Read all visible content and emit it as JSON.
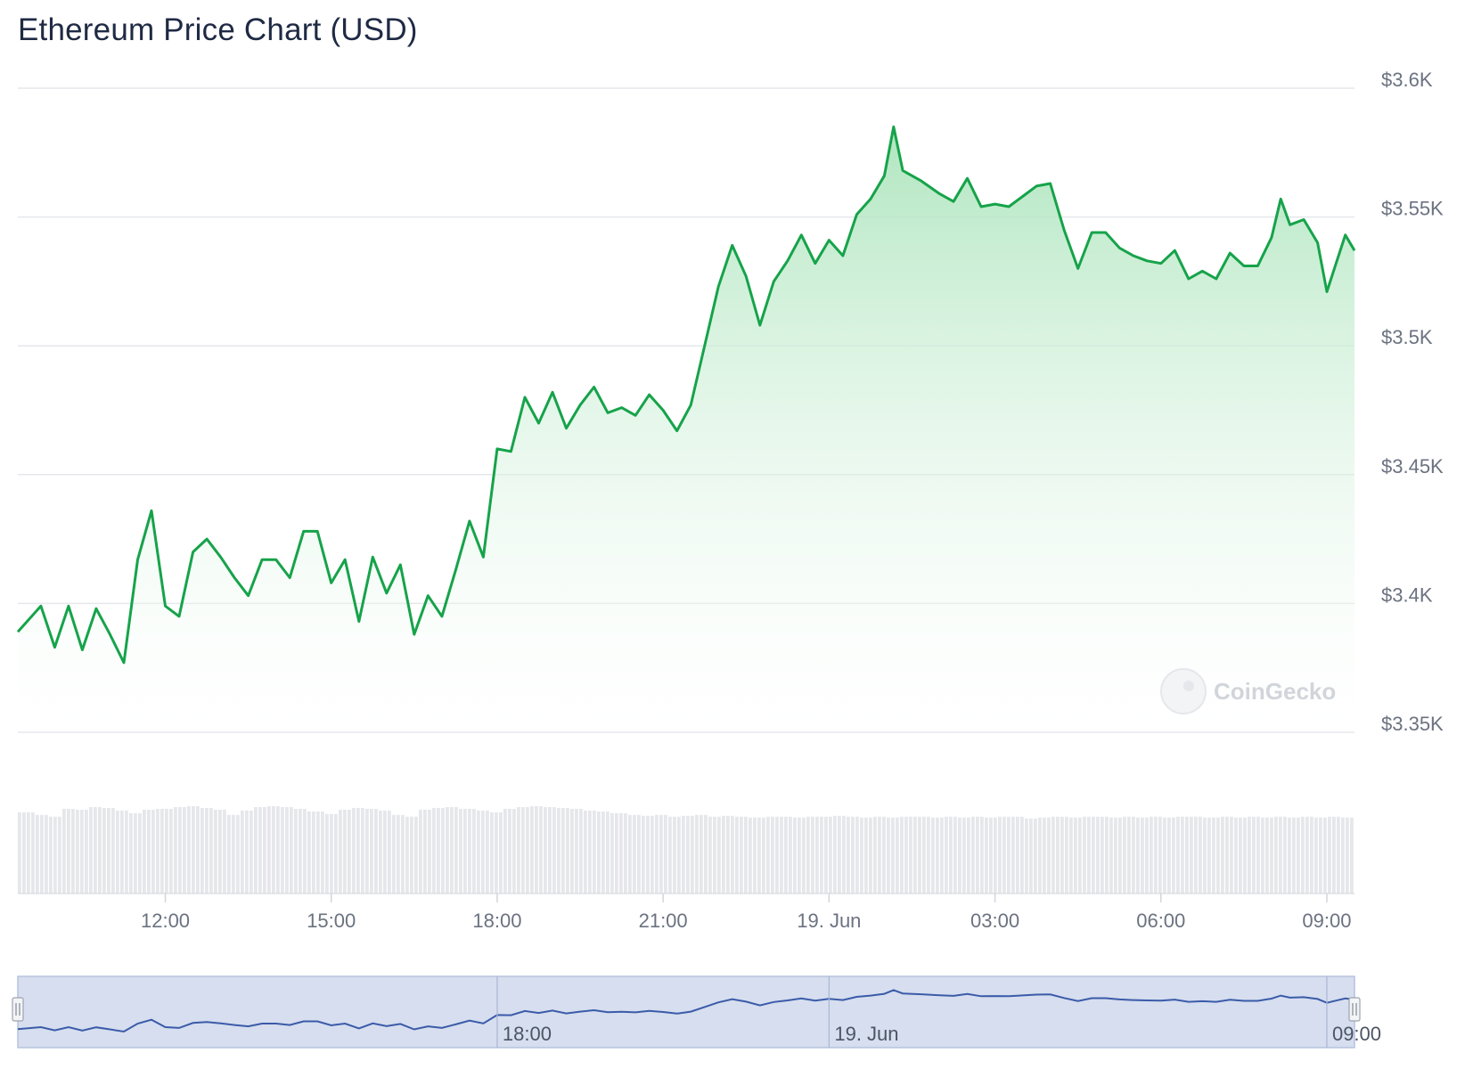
{
  "chart_data": {
    "type": "area",
    "title": "Ethereum Price Chart (USD)",
    "ylim": [
      3350,
      3600
    ],
    "y_ticks": [
      "$3.35K",
      "$3.4K",
      "$3.45K",
      "$3.5K",
      "$3.55K",
      "$3.6K"
    ],
    "y_tick_values": [
      3350,
      3400,
      3450,
      3500,
      3550,
      3600
    ],
    "x_range": [
      "2024-06-18T09:20",
      "2024-06-19T09:30"
    ],
    "x_ticks": [
      {
        "label": "12:00",
        "time": "2024-06-18T12:00"
      },
      {
        "label": "15:00",
        "time": "2024-06-18T15:00"
      },
      {
        "label": "18:00",
        "time": "2024-06-18T18:00"
      },
      {
        "label": "21:00",
        "time": "2024-06-18T21:00"
      },
      {
        "label": "19. Jun",
        "time": "2024-06-19T00:00"
      },
      {
        "label": "03:00",
        "time": "2024-06-19T03:00"
      },
      {
        "label": "06:00",
        "time": "2024-06-19T06:00"
      },
      {
        "label": "09:00",
        "time": "2024-06-19T09:00"
      }
    ],
    "grid": true,
    "line_color": "#16a34a",
    "series": [
      {
        "points": [
          [
            "2024-06-18T09:20",
            3389
          ],
          [
            "2024-06-18T09:45",
            3399
          ],
          [
            "2024-06-18T10:00",
            3383
          ],
          [
            "2024-06-18T10:15",
            3399
          ],
          [
            "2024-06-18T10:30",
            3382
          ],
          [
            "2024-06-18T10:45",
            3398
          ],
          [
            "2024-06-18T11:00",
            3388
          ],
          [
            "2024-06-18T11:15",
            3377
          ],
          [
            "2024-06-18T11:30",
            3417
          ],
          [
            "2024-06-18T11:45",
            3436
          ],
          [
            "2024-06-18T12:00",
            3399
          ],
          [
            "2024-06-18T12:15",
            3395
          ],
          [
            "2024-06-18T12:30",
            3420
          ],
          [
            "2024-06-18T12:45",
            3425
          ],
          [
            "2024-06-18T13:00",
            3418
          ],
          [
            "2024-06-18T13:15",
            3410
          ],
          [
            "2024-06-18T13:30",
            3403
          ],
          [
            "2024-06-18T13:45",
            3417
          ],
          [
            "2024-06-18T14:00",
            3417
          ],
          [
            "2024-06-18T14:15",
            3410
          ],
          [
            "2024-06-18T14:30",
            3428
          ],
          [
            "2024-06-18T14:45",
            3428
          ],
          [
            "2024-06-18T15:00",
            3408
          ],
          [
            "2024-06-18T15:15",
            3417
          ],
          [
            "2024-06-18T15:30",
            3393
          ],
          [
            "2024-06-18T15:45",
            3418
          ],
          [
            "2024-06-18T16:00",
            3404
          ],
          [
            "2024-06-18T16:15",
            3415
          ],
          [
            "2024-06-18T16:30",
            3388
          ],
          [
            "2024-06-18T16:45",
            3403
          ],
          [
            "2024-06-18T17:00",
            3395
          ],
          [
            "2024-06-18T17:15",
            3413
          ],
          [
            "2024-06-18T17:30",
            3432
          ],
          [
            "2024-06-18T17:45",
            3418
          ],
          [
            "2024-06-18T18:00",
            3460
          ],
          [
            "2024-06-18T18:15",
            3459
          ],
          [
            "2024-06-18T18:30",
            3480
          ],
          [
            "2024-06-18T18:45",
            3470
          ],
          [
            "2024-06-18T19:00",
            3482
          ],
          [
            "2024-06-18T19:15",
            3468
          ],
          [
            "2024-06-18T19:30",
            3477
          ],
          [
            "2024-06-18T19:45",
            3484
          ],
          [
            "2024-06-18T20:00",
            3474
          ],
          [
            "2024-06-18T20:15",
            3476
          ],
          [
            "2024-06-18T20:30",
            3473
          ],
          [
            "2024-06-18T20:45",
            3481
          ],
          [
            "2024-06-18T21:00",
            3475
          ],
          [
            "2024-06-18T21:15",
            3467
          ],
          [
            "2024-06-18T21:30",
            3477
          ],
          [
            "2024-06-18T21:45",
            3500
          ],
          [
            "2024-06-18T22:00",
            3523
          ],
          [
            "2024-06-18T22:15",
            3539
          ],
          [
            "2024-06-18T22:30",
            3527
          ],
          [
            "2024-06-18T22:45",
            3508
          ],
          [
            "2024-06-18T23:00",
            3525
          ],
          [
            "2024-06-18T23:15",
            3533
          ],
          [
            "2024-06-18T23:30",
            3543
          ],
          [
            "2024-06-18T23:45",
            3532
          ],
          [
            "2024-06-19T00:00",
            3541
          ],
          [
            "2024-06-19T00:15",
            3535
          ],
          [
            "2024-06-19T00:30",
            3551
          ],
          [
            "2024-06-19T00:45",
            3557
          ],
          [
            "2024-06-19T01:00",
            3566
          ],
          [
            "2024-06-19T01:10",
            3585
          ],
          [
            "2024-06-19T01:20",
            3568
          ],
          [
            "2024-06-19T01:40",
            3564
          ],
          [
            "2024-06-19T02:00",
            3559
          ],
          [
            "2024-06-19T02:15",
            3556
          ],
          [
            "2024-06-19T02:30",
            3565
          ],
          [
            "2024-06-19T02:45",
            3554
          ],
          [
            "2024-06-19T03:00",
            3555
          ],
          [
            "2024-06-19T03:15",
            3554
          ],
          [
            "2024-06-19T03:30",
            3558
          ],
          [
            "2024-06-19T03:45",
            3562
          ],
          [
            "2024-06-19T04:00",
            3563
          ],
          [
            "2024-06-19T04:15",
            3545
          ],
          [
            "2024-06-19T04:30",
            3530
          ],
          [
            "2024-06-19T04:45",
            3544
          ],
          [
            "2024-06-19T05:00",
            3544
          ],
          [
            "2024-06-19T05:15",
            3538
          ],
          [
            "2024-06-19T05:30",
            3535
          ],
          [
            "2024-06-19T05:45",
            3533
          ],
          [
            "2024-06-19T06:00",
            3532
          ],
          [
            "2024-06-19T06:15",
            3537
          ],
          [
            "2024-06-19T06:30",
            3526
          ],
          [
            "2024-06-19T06:45",
            3529
          ],
          [
            "2024-06-19T07:00",
            3526
          ],
          [
            "2024-06-19T07:15",
            3536
          ],
          [
            "2024-06-19T07:30",
            3531
          ],
          [
            "2024-06-19T07:45",
            3531
          ],
          [
            "2024-06-19T08:00",
            3542
          ],
          [
            "2024-06-19T08:10",
            3557
          ],
          [
            "2024-06-19T08:20",
            3547
          ],
          [
            "2024-06-19T08:35",
            3549
          ],
          [
            "2024-06-19T08:50",
            3540
          ],
          [
            "2024-06-19T09:00",
            3521
          ],
          [
            "2024-06-19T09:10",
            3532
          ],
          [
            "2024-06-19T09:20",
            3543
          ],
          [
            "2024-06-19T09:30",
            3537
          ]
        ]
      }
    ],
    "volume": {
      "note_levels": "relative bar heights 0-1",
      "values": [
        0.93,
        0.9,
        0.88,
        0.97,
        0.96,
        0.99,
        0.98,
        0.95,
        0.92,
        0.96,
        0.97,
        0.99,
        1.0,
        0.98,
        0.96,
        0.9,
        0.95,
        0.99,
        1.0,
        0.99,
        0.97,
        0.94,
        0.91,
        0.96,
        0.98,
        0.97,
        0.95,
        0.9,
        0.88,
        0.96,
        0.98,
        0.99,
        0.97,
        0.95,
        0.93,
        0.97,
        0.99,
        1.0,
        0.99,
        0.98,
        0.97,
        0.95,
        0.94,
        0.92,
        0.9,
        0.89,
        0.9,
        0.88,
        0.89,
        0.9,
        0.88,
        0.89,
        0.88,
        0.87,
        0.88,
        0.88,
        0.87,
        0.88,
        0.88,
        0.89,
        0.88,
        0.87,
        0.88,
        0.87,
        0.88,
        0.88,
        0.87,
        0.88,
        0.87,
        0.88,
        0.87,
        0.88,
        0.88,
        0.86,
        0.87,
        0.88,
        0.87,
        0.88,
        0.88,
        0.87,
        0.88,
        0.87,
        0.88,
        0.87,
        0.88,
        0.88,
        0.87,
        0.88,
        0.87,
        0.88,
        0.87,
        0.88,
        0.87,
        0.88,
        0.87,
        0.88,
        0.87
      ]
    },
    "navigator": {
      "x_ticks": [
        {
          "label": "18:00",
          "time": "2024-06-18T18:00"
        },
        {
          "label": "19. Jun",
          "time": "2024-06-19T00:00"
        },
        {
          "label": "09:00",
          "time": "2024-06-19T09:00"
        }
      ]
    },
    "watermark": "CoinGecko"
  },
  "colors": {
    "line": "#16a34a",
    "fill_top": "#a7e3b8",
    "grid": "#e5e7eb",
    "volume": "#e5e7eb",
    "navigator_bg": "#d6deef",
    "navigator_line": "#3b5ba9"
  }
}
